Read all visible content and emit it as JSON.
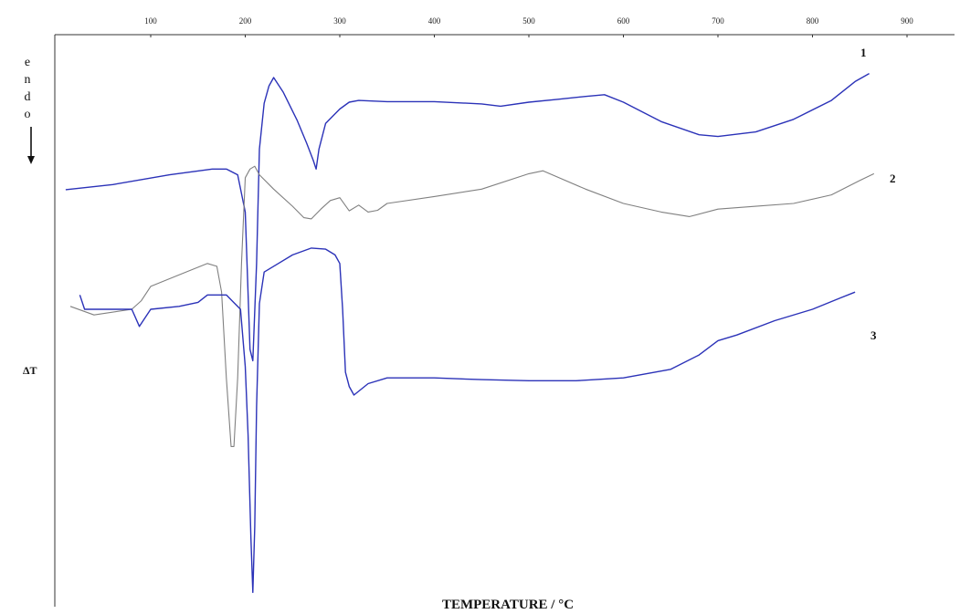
{
  "chart_data": {
    "type": "line",
    "title": "",
    "xlabel": "TEMPERATURE / °C",
    "ylabel_letters": [
      "e",
      "n",
      "d",
      "o"
    ],
    "ylabel_delta": "ΔT",
    "xlim": [
      0,
      900
    ],
    "ylim": [
      0,
      1
    ],
    "grid": false,
    "x_ticks": [
      100,
      200,
      300,
      400,
      500,
      600,
      700,
      800,
      900
    ],
    "x_tick_labels": [
      "100",
      "200",
      "300",
      "400",
      "500",
      "600",
      "700",
      "800",
      "900"
    ],
    "series": [
      {
        "name": "1",
        "color": "#2b32b8",
        "points": [
          [
            10,
            0.271
          ],
          [
            60,
            0.262
          ],
          [
            120,
            0.245
          ],
          [
            165,
            0.235
          ],
          [
            180,
            0.235
          ],
          [
            192,
            0.245
          ],
          [
            200,
            0.31
          ],
          [
            205,
            0.55
          ],
          [
            208,
            0.57
          ],
          [
            212,
            0.4
          ],
          [
            215,
            0.2
          ],
          [
            220,
            0.12
          ],
          [
            225,
            0.09
          ],
          [
            230,
            0.075
          ],
          [
            240,
            0.1
          ],
          [
            255,
            0.15
          ],
          [
            265,
            0.19
          ],
          [
            272,
            0.22
          ],
          [
            275,
            0.235
          ],
          [
            278,
            0.2
          ],
          [
            285,
            0.155
          ],
          [
            300,
            0.13
          ],
          [
            310,
            0.118
          ],
          [
            320,
            0.115
          ],
          [
            350,
            0.117
          ],
          [
            400,
            0.117
          ],
          [
            450,
            0.121
          ],
          [
            470,
            0.125
          ],
          [
            500,
            0.118
          ],
          [
            530,
            0.113
          ],
          [
            560,
            0.108
          ],
          [
            580,
            0.105
          ],
          [
            600,
            0.118
          ],
          [
            640,
            0.152
          ],
          [
            680,
            0.175
          ],
          [
            700,
            0.178
          ],
          [
            740,
            0.17
          ],
          [
            780,
            0.148
          ],
          [
            820,
            0.115
          ],
          [
            845,
            0.082
          ],
          [
            860,
            0.068
          ]
        ]
      },
      {
        "name": "2",
        "color": "#808080",
        "points": [
          [
            15,
            0.475
          ],
          [
            40,
            0.49
          ],
          [
            80,
            0.48
          ],
          [
            90,
            0.465
          ],
          [
            100,
            0.44
          ],
          [
            130,
            0.42
          ],
          [
            160,
            0.4
          ],
          [
            170,
            0.405
          ],
          [
            175,
            0.45
          ],
          [
            180,
            0.6
          ],
          [
            185,
            0.72
          ],
          [
            188,
            0.72
          ],
          [
            192,
            0.6
          ],
          [
            196,
            0.4
          ],
          [
            200,
            0.25
          ],
          [
            205,
            0.235
          ],
          [
            210,
            0.23
          ],
          [
            215,
            0.245
          ],
          [
            230,
            0.27
          ],
          [
            250,
            0.3
          ],
          [
            262,
            0.32
          ],
          [
            270,
            0.322
          ],
          [
            280,
            0.305
          ],
          [
            290,
            0.29
          ],
          [
            300,
            0.285
          ],
          [
            310,
            0.308
          ],
          [
            320,
            0.298
          ],
          [
            330,
            0.31
          ],
          [
            340,
            0.307
          ],
          [
            350,
            0.295
          ],
          [
            400,
            0.283
          ],
          [
            450,
            0.27
          ],
          [
            500,
            0.243
          ],
          [
            515,
            0.238
          ],
          [
            560,
            0.27
          ],
          [
            600,
            0.295
          ],
          [
            640,
            0.31
          ],
          [
            670,
            0.318
          ],
          [
            700,
            0.305
          ],
          [
            740,
            0.3
          ],
          [
            780,
            0.295
          ],
          [
            820,
            0.28
          ],
          [
            850,
            0.255
          ],
          [
            865,
            0.243
          ]
        ]
      },
      {
        "name": "3",
        "color": "#2b32b8",
        "points": [
          [
            25,
            0.455
          ],
          [
            30,
            0.48
          ],
          [
            50,
            0.48
          ],
          [
            80,
            0.48
          ],
          [
            88,
            0.51
          ],
          [
            92,
            0.5
          ],
          [
            100,
            0.48
          ],
          [
            130,
            0.475
          ],
          [
            150,
            0.468
          ],
          [
            160,
            0.455
          ],
          [
            180,
            0.455
          ],
          [
            195,
            0.48
          ],
          [
            200,
            0.58
          ],
          [
            203,
            0.7
          ],
          [
            206,
            0.88
          ],
          [
            208,
            0.975
          ],
          [
            210,
            0.86
          ],
          [
            212,
            0.65
          ],
          [
            215,
            0.47
          ],
          [
            220,
            0.415
          ],
          [
            235,
            0.4
          ],
          [
            250,
            0.385
          ],
          [
            270,
            0.373
          ],
          [
            285,
            0.375
          ],
          [
            295,
            0.385
          ],
          [
            300,
            0.4
          ],
          [
            303,
            0.48
          ],
          [
            306,
            0.59
          ],
          [
            310,
            0.615
          ],
          [
            315,
            0.63
          ],
          [
            330,
            0.61
          ],
          [
            350,
            0.6
          ],
          [
            400,
            0.6
          ],
          [
            450,
            0.603
          ],
          [
            500,
            0.605
          ],
          [
            550,
            0.605
          ],
          [
            600,
            0.6
          ],
          [
            650,
            0.585
          ],
          [
            680,
            0.56
          ],
          [
            700,
            0.535
          ],
          [
            720,
            0.525
          ],
          [
            760,
            0.5
          ],
          [
            800,
            0.48
          ],
          [
            830,
            0.46
          ],
          [
            845,
            0.45
          ]
        ]
      }
    ],
    "curve_labels": [
      "1",
      "2",
      "3"
    ]
  }
}
